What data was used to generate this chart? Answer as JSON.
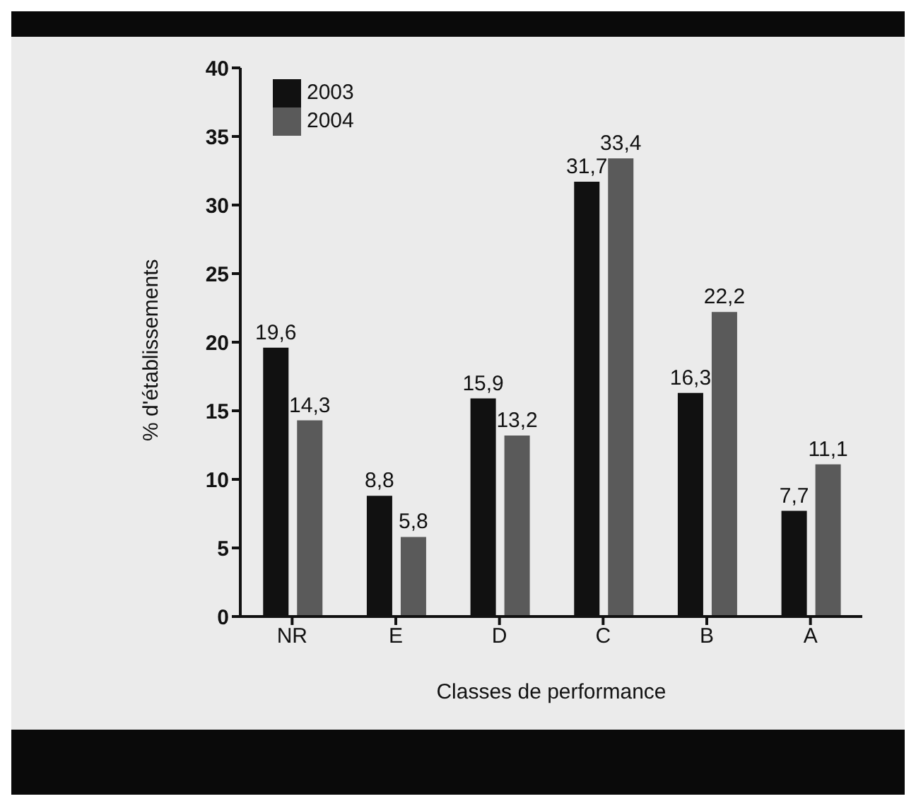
{
  "chart_data": {
    "type": "bar",
    "xlabel": "Classes de performance",
    "ylabel": "% d'établissements",
    "categories": [
      "NR",
      "E",
      "D",
      "C",
      "B",
      "A"
    ],
    "series": [
      {
        "name": "2003",
        "color": "#111111",
        "values": [
          19.6,
          8.8,
          15.9,
          31.7,
          16.3,
          7.7
        ],
        "value_labels": [
          "19,6",
          "8,8",
          "15,9",
          "31,7",
          "16,3",
          "7,7"
        ]
      },
      {
        "name": "2004",
        "color": "#5a5a5a",
        "values": [
          14.3,
          5.8,
          13.2,
          33.4,
          22.2,
          11.1
        ],
        "value_labels": [
          "14,3",
          "5,8",
          "13,2",
          "33,4",
          "22,2",
          "11,1"
        ]
      }
    ],
    "ylim": [
      0,
      40
    ],
    "yticks": [
      0,
      5,
      10,
      15,
      20,
      25,
      30,
      35,
      40
    ],
    "legend": "top left"
  }
}
